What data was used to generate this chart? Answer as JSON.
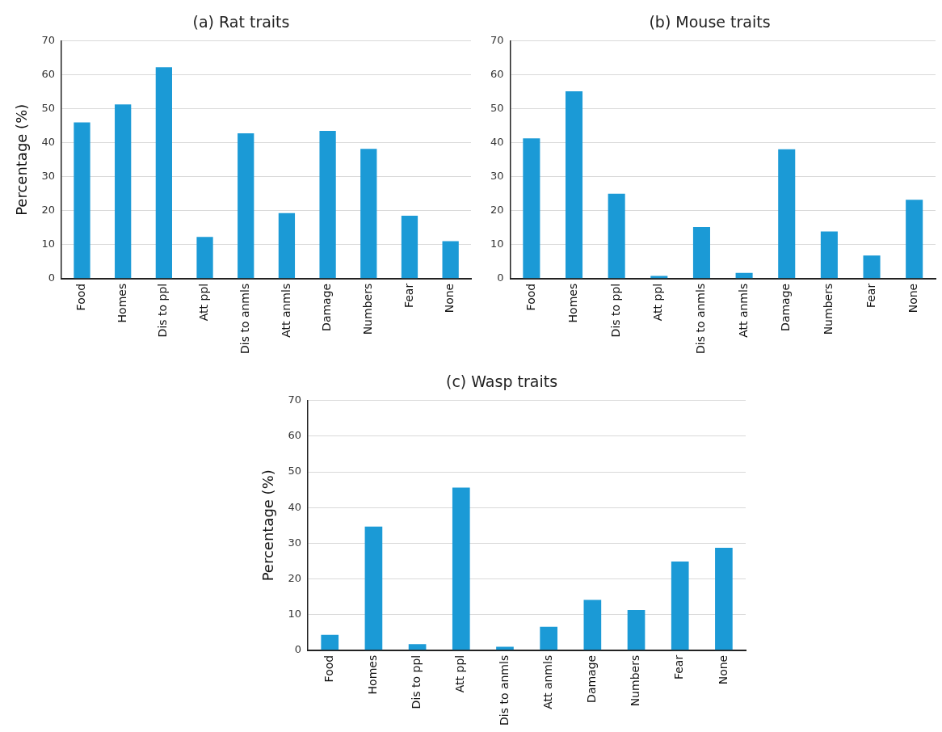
{
  "chart_data": [
    {
      "type": "bar",
      "title": "(a) Rat traits",
      "ylabel": "Percentage (%)",
      "categories": [
        "Food",
        "Homes",
        "Dis to ppl",
        "Att ppl",
        "Dis to anmls",
        "Att anmls",
        "Damage",
        "Numbers",
        "Fear",
        "None"
      ],
      "values": [
        46,
        51.3,
        62.3,
        12.3,
        42.8,
        19.3,
        43.5,
        38.2,
        18.5,
        11
      ],
      "color": "#1b9ad6",
      "ylim": [
        0,
        70
      ],
      "yticks": [
        0,
        10,
        20,
        30,
        40,
        50,
        60,
        70
      ],
      "grid": "y"
    },
    {
      "type": "bar",
      "title": "(b) Mouse traits",
      "categories": [
        "Food",
        "Homes",
        "Dis to ppl",
        "Att ppl",
        "Dis to anmls",
        "Att anmls",
        "Damage",
        "Numbers",
        "Fear",
        "None"
      ],
      "values": [
        41.3,
        55.2,
        25,
        0.8,
        15.2,
        1.7,
        38.1,
        13.9,
        6.8,
        23.2
      ],
      "color": "#1b9ad6",
      "ylim": [
        0,
        70
      ],
      "yticks": [
        0,
        10,
        20,
        30,
        40,
        50,
        60,
        70
      ],
      "grid": "y"
    },
    {
      "type": "bar",
      "title": "(c) Wasp traits",
      "ylabel": "Percentage (%)",
      "categories": [
        "Food",
        "Homes",
        "Dis to ppl",
        "Att ppl",
        "Dis to anmls",
        "Att anmls",
        "Damage",
        "Numbers",
        "Fear",
        "None"
      ],
      "values": [
        4.3,
        34.7,
        1.7,
        45.6,
        1.0,
        6.6,
        14.1,
        11.3,
        24.9,
        28.7
      ],
      "color": "#1b9ad6",
      "ylim": [
        0,
        70
      ],
      "yticks": [
        0,
        10,
        20,
        30,
        40,
        50,
        60,
        70
      ],
      "grid": "y"
    }
  ]
}
